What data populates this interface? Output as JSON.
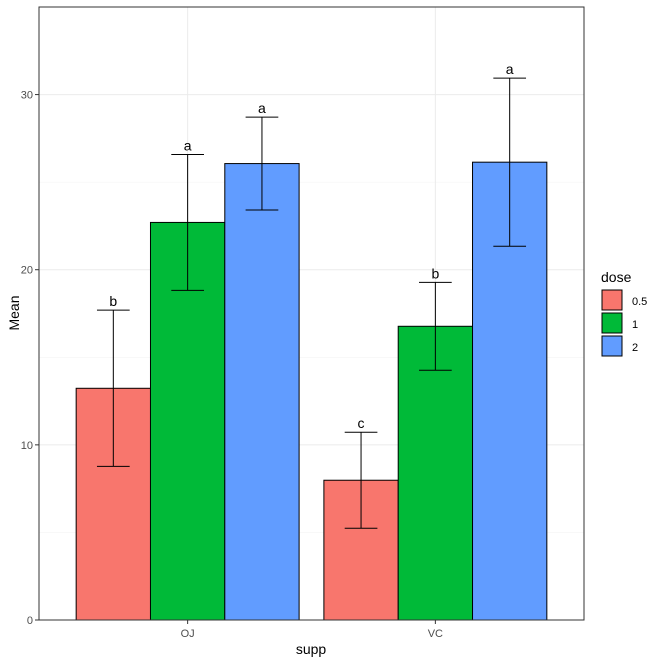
{
  "chart_data": {
    "type": "bar",
    "categories": [
      "OJ",
      "VC"
    ],
    "series": [
      {
        "name": "0.5",
        "color": "#F8766D",
        "values": [
          13.23,
          7.98
        ],
        "err_low": [
          8.77,
          5.24
        ],
        "err_high": [
          17.69,
          10.72
        ],
        "labels": [
          "b",
          "c"
        ]
      },
      {
        "name": "1",
        "color": "#00BA38",
        "values": [
          22.7,
          16.77
        ],
        "err_low": [
          18.82,
          14.26
        ],
        "err_high": [
          26.58,
          19.28
        ],
        "labels": [
          "a",
          "b"
        ]
      },
      {
        "name": "2",
        "color": "#619CFF",
        "values": [
          26.06,
          26.14
        ],
        "err_low": [
          23.41,
          21.34
        ],
        "err_high": [
          28.71,
          30.94
        ],
        "labels": [
          "a",
          "a"
        ]
      }
    ],
    "xlabel": "supp",
    "ylabel": "Mean",
    "ylim": [
      0,
      35
    ],
    "yticks": [
      0,
      10,
      20,
      30
    ],
    "grid": true,
    "legend": {
      "title": "dose",
      "position": "right"
    }
  }
}
